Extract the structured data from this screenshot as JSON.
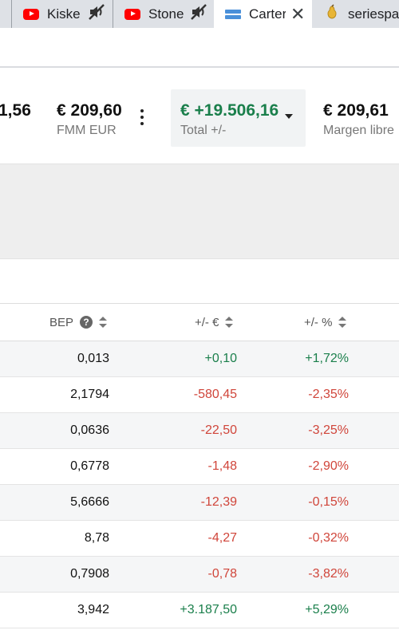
{
  "tabs": [
    {
      "title": "Kiske",
      "favicon": "youtube-icon",
      "muted": true
    },
    {
      "title": "Stone",
      "favicon": "youtube-icon",
      "muted": true
    },
    {
      "title": "Carter",
      "favicon": "blue-bars-icon",
      "active": true
    },
    {
      "title": "seriespapa",
      "favicon": "pear-icon"
    }
  ],
  "summary": {
    "partial_value": "1,56",
    "fmm_value": "€ 209,60",
    "fmm_label": "FMM EUR",
    "total_value": "€ +19.506,16",
    "total_label": "Total +/-",
    "margin_value": "€ 209,61",
    "margin_label": "Margen libre"
  },
  "table": {
    "headers": {
      "bep": "BEP",
      "plus_minus_eur": "+/- €",
      "plus_minus_pct": "+/- %"
    },
    "rows": [
      {
        "bep": "0,013",
        "eur": "+0,10",
        "pct": "+1,72%",
        "sign": "pos"
      },
      {
        "bep": "2,1794",
        "eur": "-580,45",
        "pct": "-2,35%",
        "sign": "neg"
      },
      {
        "bep": "0,0636",
        "eur": "-22,50",
        "pct": "-3,25%",
        "sign": "neg"
      },
      {
        "bep": "0,6778",
        "eur": "-1,48",
        "pct": "-2,90%",
        "sign": "neg"
      },
      {
        "bep": "5,6666",
        "eur": "-12,39",
        "pct": "-0,15%",
        "sign": "neg"
      },
      {
        "bep": "8,78",
        "eur": "-4,27",
        "pct": "-0,32%",
        "sign": "neg"
      },
      {
        "bep": "0,7908",
        "eur": "-0,78",
        "pct": "-3,82%",
        "sign": "neg"
      },
      {
        "bep": "3,942",
        "eur": "+3.187,50",
        "pct": "+5,29%",
        "sign": "pos"
      }
    ]
  },
  "colors": {
    "positive": "#1a7f4b",
    "negative": "#d0453a",
    "youtube": "#ff0000"
  }
}
